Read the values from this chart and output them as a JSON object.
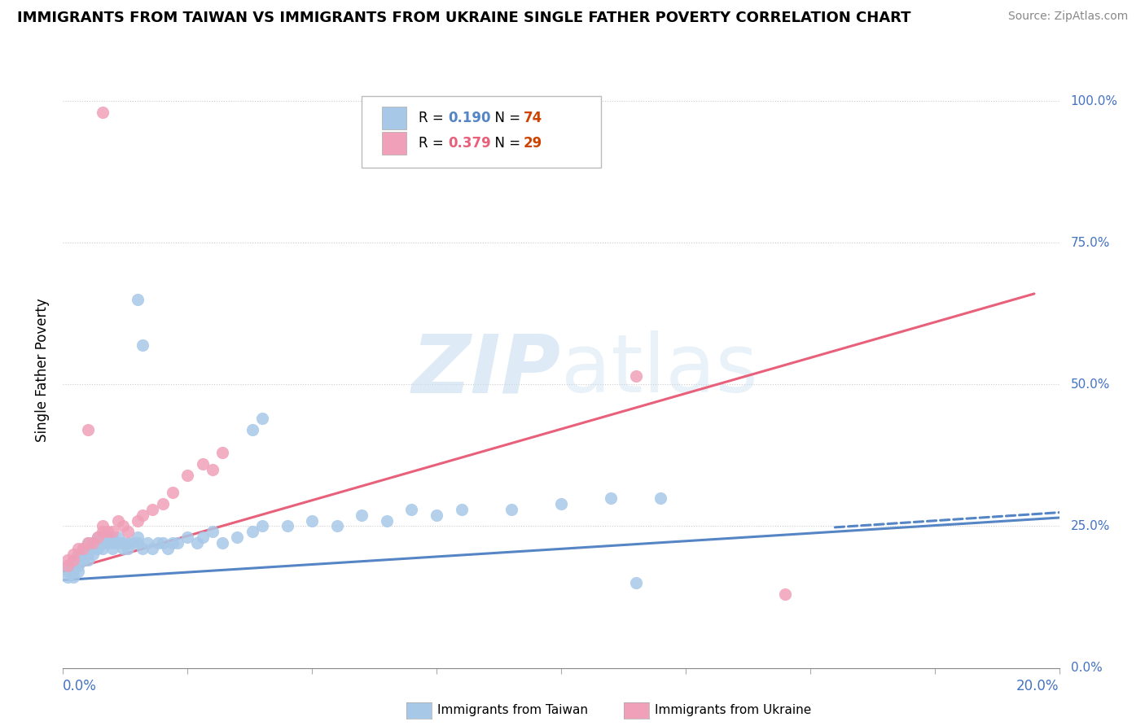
{
  "title": "IMMIGRANTS FROM TAIWAN VS IMMIGRANTS FROM UKRAINE SINGLE FATHER POVERTY CORRELATION CHART",
  "source": "Source: ZipAtlas.com",
  "ylabel": "Single Father Poverty",
  "color_taiwan": "#a8c8e8",
  "color_ukraine": "#f0a0b8",
  "color_taiwan_line": "#5585c5",
  "color_ukraine_line": "#e8607a",
  "color_axis_labels": "#4472c4",
  "watermark_color": "#ddeeff",
  "xlim": [
    0.0,
    0.2
  ],
  "ylim": [
    0.0,
    1.05
  ],
  "yticks": [
    0.0,
    0.25,
    0.5,
    0.75,
    1.0
  ],
  "ytick_labels": [
    "0.0%",
    "25.0%",
    "50.0%",
    "75.0%",
    "100.0%"
  ],
  "xtick_labels": [
    "0.0%",
    "20.0%"
  ],
  "taiwan_trend": {
    "x": [
      0.0,
      0.2
    ],
    "y": [
      0.155,
      0.265
    ]
  },
  "taiwan_dash": {
    "x": [
      0.155,
      0.21
    ],
    "y": [
      0.248,
      0.28
    ]
  },
  "ukraine_trend": {
    "x": [
      0.0,
      0.195
    ],
    "y": [
      0.17,
      0.66
    ]
  },
  "legend_taiwan_R": "0.190",
  "legend_taiwan_N": "74",
  "legend_ukraine_R": "0.379",
  "legend_ukraine_N": "29",
  "taiwan_scatter_x": [
    0.001,
    0.001,
    0.001,
    0.002,
    0.002,
    0.002,
    0.002,
    0.003,
    0.003,
    0.003,
    0.003,
    0.004,
    0.004,
    0.004,
    0.005,
    0.005,
    0.005,
    0.005,
    0.006,
    0.006,
    0.006,
    0.007,
    0.007,
    0.007,
    0.008,
    0.008,
    0.008,
    0.009,
    0.009,
    0.01,
    0.01,
    0.01,
    0.011,
    0.011,
    0.012,
    0.012,
    0.013,
    0.013,
    0.014,
    0.015,
    0.015,
    0.016,
    0.017,
    0.018,
    0.019,
    0.02,
    0.021,
    0.022,
    0.023,
    0.025,
    0.027,
    0.028,
    0.03,
    0.032,
    0.035,
    0.038,
    0.04,
    0.045,
    0.05,
    0.055,
    0.06,
    0.065,
    0.07,
    0.075,
    0.08,
    0.09,
    0.1,
    0.11,
    0.115,
    0.12,
    0.015,
    0.016,
    0.038,
    0.04
  ],
  "taiwan_scatter_y": [
    0.18,
    0.17,
    0.16,
    0.19,
    0.18,
    0.17,
    0.16,
    0.2,
    0.19,
    0.18,
    0.17,
    0.21,
    0.2,
    0.19,
    0.22,
    0.21,
    0.2,
    0.19,
    0.22,
    0.21,
    0.2,
    0.23,
    0.22,
    0.21,
    0.23,
    0.22,
    0.21,
    0.23,
    0.22,
    0.23,
    0.22,
    0.21,
    0.23,
    0.22,
    0.22,
    0.21,
    0.22,
    0.21,
    0.22,
    0.23,
    0.22,
    0.21,
    0.22,
    0.21,
    0.22,
    0.22,
    0.21,
    0.22,
    0.22,
    0.23,
    0.22,
    0.23,
    0.24,
    0.22,
    0.23,
    0.24,
    0.25,
    0.25,
    0.26,
    0.25,
    0.27,
    0.26,
    0.28,
    0.27,
    0.28,
    0.28,
    0.29,
    0.3,
    0.15,
    0.3,
    0.65,
    0.57,
    0.42,
    0.44
  ],
  "ukraine_scatter_x": [
    0.001,
    0.001,
    0.002,
    0.002,
    0.003,
    0.004,
    0.005,
    0.005,
    0.006,
    0.007,
    0.008,
    0.008,
    0.009,
    0.01,
    0.011,
    0.012,
    0.013,
    0.015,
    0.016,
    0.018,
    0.02,
    0.022,
    0.025,
    0.028,
    0.03,
    0.032,
    0.008,
    0.115,
    0.145
  ],
  "ukraine_scatter_y": [
    0.19,
    0.18,
    0.2,
    0.19,
    0.21,
    0.21,
    0.22,
    0.42,
    0.22,
    0.23,
    0.24,
    0.25,
    0.24,
    0.24,
    0.26,
    0.25,
    0.24,
    0.26,
    0.27,
    0.28,
    0.29,
    0.31,
    0.34,
    0.36,
    0.35,
    0.38,
    0.98,
    0.515,
    0.13
  ]
}
